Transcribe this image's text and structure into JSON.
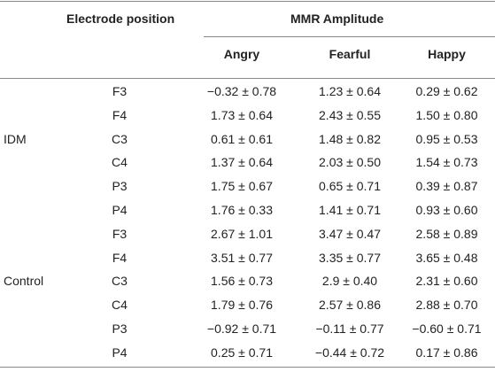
{
  "header": {
    "electrode_position": "Electrode position",
    "mmr_amplitude": "MMR Amplitude",
    "columns": [
      "Angry",
      "Fearful",
      "Happy"
    ]
  },
  "groups": [
    {
      "name": "IDM",
      "rows": [
        {
          "position": "F3",
          "angry": "−0.32 ± 0.78",
          "fearful": "1.23 ± 0.64",
          "happy": "0.29 ± 0.62"
        },
        {
          "position": "F4",
          "angry": "1.73 ± 0.64",
          "fearful": "2.43 ± 0.55",
          "happy": "1.50 ± 0.80"
        },
        {
          "position": "C3",
          "angry": "0.61 ± 0.61",
          "fearful": "1.48 ± 0.82",
          "happy": "0.95 ± 0.53"
        },
        {
          "position": "C4",
          "angry": "1.37 ± 0.64",
          "fearful": "2.03 ± 0.50",
          "happy": "1.54 ± 0.73"
        },
        {
          "position": "P3",
          "angry": "1.75 ± 0.67",
          "fearful": "0.65 ± 0.71",
          "happy": "0.39 ± 0.87"
        },
        {
          "position": "P4",
          "angry": "1.76 ± 0.33",
          "fearful": "1.41 ± 0.71",
          "happy": "0.93 ± 0.60"
        }
      ]
    },
    {
      "name": "Control",
      "rows": [
        {
          "position": "F3",
          "angry": "2.67 ± 1.01",
          "fearful": "3.47 ± 0.47",
          "happy": "2.58 ± 0.89"
        },
        {
          "position": "F4",
          "angry": "3.51 ± 0.77",
          "fearful": "3.35 ± 0.77",
          "happy": "3.65 ± 0.48"
        },
        {
          "position": "C3",
          "angry": "1.56 ± 0.73",
          "fearful": "2.9 ± 0.40",
          "happy": "2.31 ± 0.60"
        },
        {
          "position": "C4",
          "angry": "1.79 ± 0.76",
          "fearful": "2.57 ± 0.86",
          "happy": "2.88 ± 0.70"
        },
        {
          "position": "P3",
          "angry": "−0.92 ± 0.71",
          "fearful": "−0.11 ± 0.77",
          "happy": "−0.60 ± 0.71"
        },
        {
          "position": "P4",
          "angry": "0.25 ± 0.71",
          "fearful": "−0.44 ± 0.72",
          "happy": "0.17 ± 0.86"
        }
      ]
    }
  ]
}
